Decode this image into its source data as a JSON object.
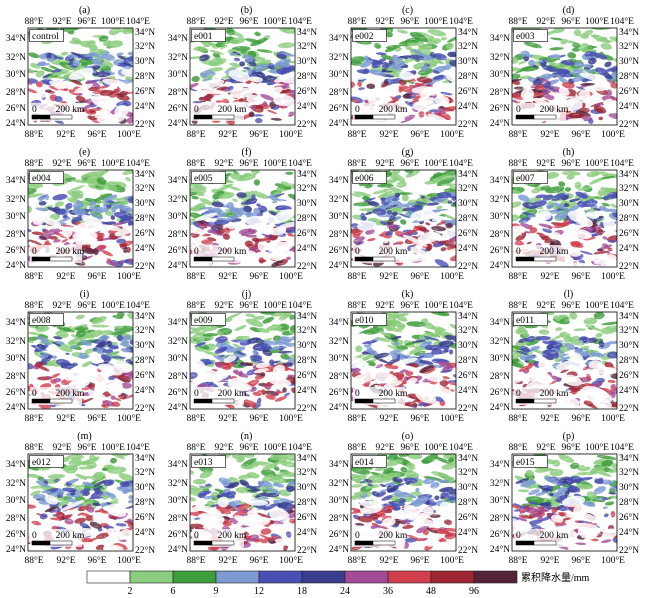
{
  "colorbar": {
    "title": "累积降水量/mm",
    "ticks": [
      "2",
      "6",
      "9",
      "12",
      "18",
      "24",
      "36",
      "48",
      "96"
    ],
    "colors": [
      "#ffffff",
      "#8ccc7e",
      "#3e9e3c",
      "#7d9bd2",
      "#4a4fb4",
      "#3a3d8c",
      "#a24b96",
      "#cf3f4c",
      "#9f2632",
      "#54223a"
    ]
  },
  "map_axes": {
    "lon_top": [
      "88°E",
      "92°E",
      "96°E",
      "100°E",
      "104°E"
    ],
    "lon_bottom": [
      "88°E",
      "92°E",
      "96°E",
      "100°E"
    ],
    "lat_left": [
      "34°N",
      "32°N",
      "30°N",
      "28°N",
      "26°N",
      "24°N"
    ],
    "lat_right": [
      "34°N",
      "32°N",
      "30°N",
      "28°N",
      "26°N",
      "24°N",
      "22°N"
    ]
  },
  "scale_bar": {
    "zero": "0",
    "distance": "200 km"
  },
  "panels": [
    {
      "letter": "(a)",
      "run": "control"
    },
    {
      "letter": "(b)",
      "run": "e001"
    },
    {
      "letter": "(c)",
      "run": "e002"
    },
    {
      "letter": "(d)",
      "run": "e003"
    },
    {
      "letter": "(e)",
      "run": "e004"
    },
    {
      "letter": "(f)",
      "run": "e005"
    },
    {
      "letter": "(g)",
      "run": "e006"
    },
    {
      "letter": "(h)",
      "run": "e007"
    },
    {
      "letter": "(i)",
      "run": "e008"
    },
    {
      "letter": "(j)",
      "run": "e009"
    },
    {
      "letter": "(k)",
      "run": "e010"
    },
    {
      "letter": "(l)",
      "run": "e011"
    },
    {
      "letter": "(m)",
      "run": "e012"
    },
    {
      "letter": "(n)",
      "run": "e013"
    },
    {
      "letter": "(o)",
      "run": "e014"
    },
    {
      "letter": "(p)",
      "run": "e015"
    }
  ]
}
